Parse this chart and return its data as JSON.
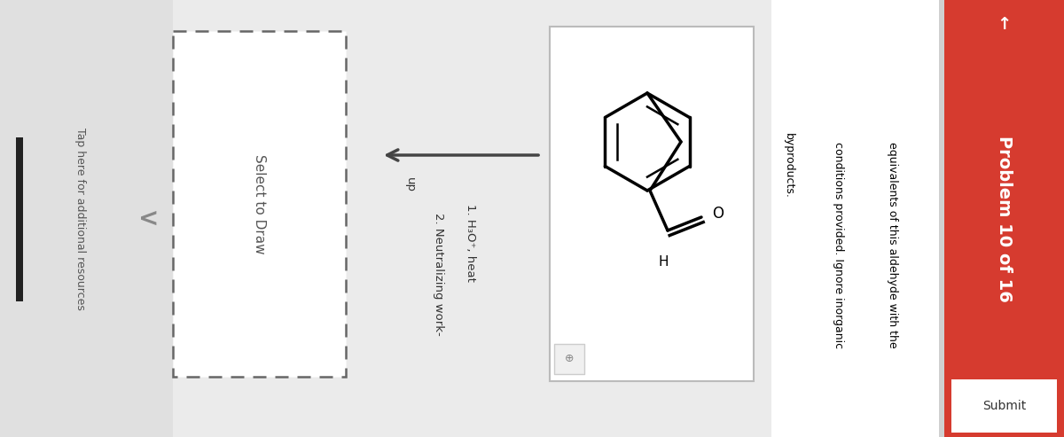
{
  "bg_color": "#ebebeb",
  "red_color": "#d63b2f",
  "problem_text": "Problem 10 of 16",
  "subtext1": "equivalents of this aldehyde with the",
  "subtext2": "conditions provided. Ignore inorganic",
  "subtext3": "byproducts.",
  "submit_label": "Submit",
  "arrow_label1": "1. H₃O⁺, heat",
  "arrow_label2": "2. Neutralizing work-",
  "arrow_label3": "up",
  "select_to_draw": "Select to Draw",
  "tap_text": "Tap here for additional resources",
  "back_chevron": "<",
  "nav_arrow": "→"
}
